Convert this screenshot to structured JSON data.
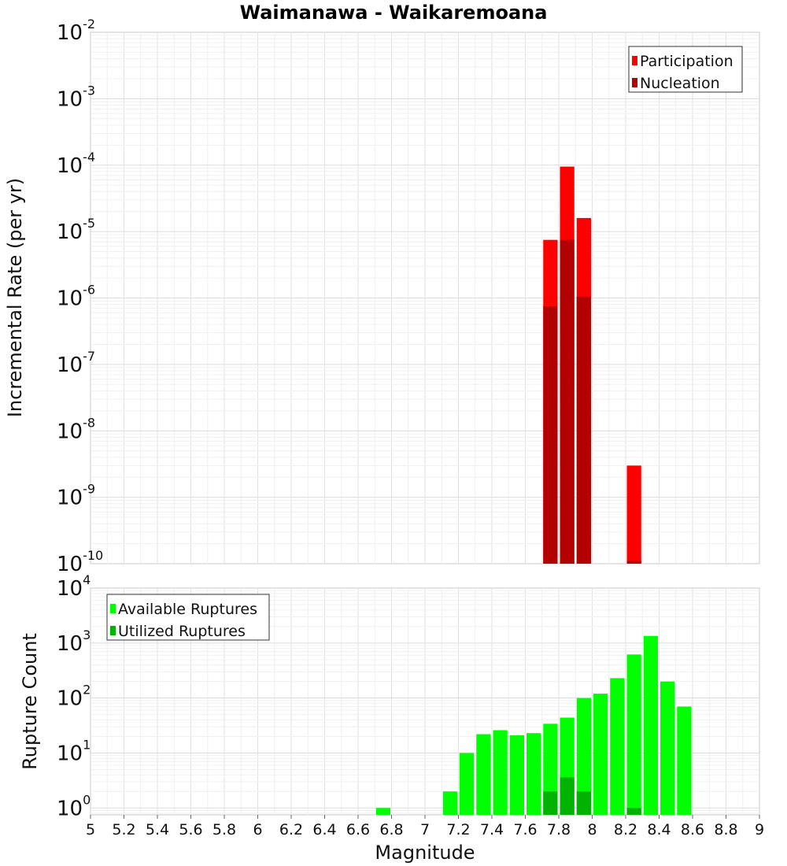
{
  "chart_data": [
    {
      "type": "bar",
      "title": "Waimanawa - Waikaremoana",
      "xlabel": "",
      "ylabel": "Incremental Rate (per yr)",
      "xlim": [
        5,
        9
      ],
      "ylim": [
        1e-10,
        0.01
      ],
      "yscale": "log",
      "ytick_bases": [
        "10",
        "10",
        "10",
        "10",
        "10",
        "10",
        "10",
        "10",
        "10"
      ],
      "ytick_exponents": [
        "-2",
        "-3",
        "-4",
        "-5",
        "-6",
        "-7",
        "-8",
        "-9",
        "-10"
      ],
      "grid": true,
      "legend_position": "top-right",
      "bar_width": 0.1,
      "series": [
        {
          "name": "Participation",
          "color": "#ff0000",
          "x": [
            7.75,
            7.85,
            7.95,
            8.25
          ],
          "values": [
            7.5e-06,
            9.5e-05,
            1.6e-05,
            3e-09
          ]
        },
        {
          "name": "Nucleation",
          "color": "#b30000",
          "x": [
            7.75,
            7.85,
            7.95,
            8.25
          ],
          "values": [
            7.5e-07,
            7.5e-06,
            1.05e-06,
            1.1e-10
          ]
        }
      ]
    },
    {
      "type": "bar",
      "title": "",
      "xlabel": "Magnitude",
      "ylabel": "Rupture Count",
      "xlim": [
        5,
        9
      ],
      "ylim": [
        0.75,
        10000
      ],
      "yscale": "log",
      "ytick_bases": [
        "10",
        "10",
        "10",
        "10",
        "10"
      ],
      "ytick_exponents": [
        "4",
        "3",
        "2",
        "1",
        "0"
      ],
      "xticks": [
        "5",
        "5.2",
        "5.4",
        "5.6",
        "5.8",
        "6",
        "6.2",
        "6.4",
        "6.6",
        "6.8",
        "7",
        "7.2",
        "7.4",
        "7.6",
        "7.8",
        "8",
        "8.2",
        "8.4",
        "8.6",
        "8.8",
        "9"
      ],
      "grid": true,
      "legend_position": "top-left",
      "bar_width": 0.1,
      "series": [
        {
          "name": "Available Ruptures",
          "color": "#00ff00",
          "x": [
            6.75,
            7.15,
            7.25,
            7.35,
            7.45,
            7.55,
            7.65,
            7.75,
            7.85,
            7.95,
            8.05,
            8.15,
            8.25,
            8.35,
            8.45,
            8.55
          ],
          "values": [
            1,
            2,
            10,
            22,
            26,
            21,
            23,
            34,
            44,
            100,
            120,
            230,
            620,
            1350,
            200,
            70
          ]
        },
        {
          "name": "Utilized Ruptures",
          "color": "#00b300",
          "x": [
            7.75,
            7.85,
            7.95,
            8.25
          ],
          "values": [
            2,
            3.6,
            2,
            1
          ]
        }
      ]
    }
  ]
}
